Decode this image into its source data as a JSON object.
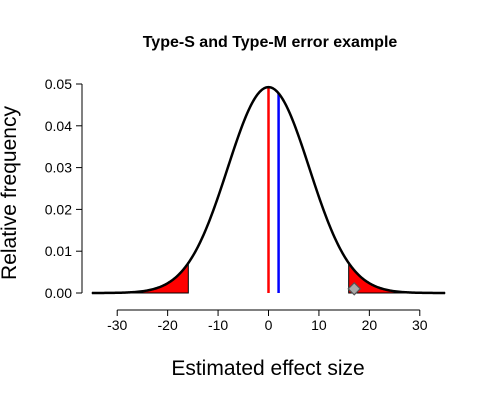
{
  "chart_data": {
    "type": "line",
    "title": "Type-S and Type-M error example",
    "xlabel": "Estimated effect size",
    "ylabel": "Relative frequency",
    "xlim": [
      -35,
      35
    ],
    "ylim": [
      0,
      0.05
    ],
    "xticks": [
      -30,
      -20,
      -10,
      0,
      10,
      20,
      30
    ],
    "yticks": [
      0,
      0.01,
      0.02,
      0.03,
      0.04,
      0.05
    ],
    "ytick_labels": [
      "0.00",
      "0.01",
      "0.02",
      "0.03",
      "0.04",
      "0.05"
    ],
    "grid": false,
    "curve": {
      "kind": "normal-density",
      "mean": 0,
      "sd": 8.1,
      "color": "#000000"
    },
    "rejection_regions": [
      {
        "from": -35,
        "to": -15.9,
        "color": "#ff0000"
      },
      {
        "from": 15.9,
        "to": 35,
        "color": "#ff0000"
      }
    ],
    "vertical_lines": [
      {
        "x": 0,
        "color": "#ff0000"
      },
      {
        "x": 2,
        "color": "#0000ff"
      }
    ],
    "marker": {
      "x": 17,
      "y": 0.001,
      "shape": "diamond",
      "fill": "#a9a9a9",
      "stroke": "#555555"
    }
  }
}
